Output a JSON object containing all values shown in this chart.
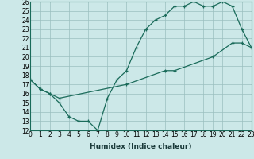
{
  "xlabel": "Humidex (Indice chaleur)",
  "bg_color": "#cce8e8",
  "line_color": "#1a6b5a",
  "x_line1": [
    0,
    1,
    2,
    3,
    4,
    5,
    6,
    7,
    8,
    9,
    10,
    11,
    12,
    13,
    14,
    15,
    16,
    17,
    18,
    19,
    20,
    21,
    22,
    23
  ],
  "y_line1": [
    17.5,
    16.5,
    16.0,
    15.0,
    13.5,
    13.0,
    13.0,
    12.0,
    15.5,
    17.5,
    18.5,
    21.0,
    23.0,
    24.0,
    24.5,
    25.5,
    25.5,
    26.0,
    25.5,
    25.5,
    26.0,
    25.5,
    23.0,
    21.0
  ],
  "x_line2": [
    0,
    1,
    2,
    3,
    10,
    14,
    15,
    19,
    21,
    22,
    23
  ],
  "y_line2": [
    17.5,
    16.5,
    16.0,
    15.5,
    17.0,
    18.5,
    18.5,
    20.0,
    21.5,
    21.5,
    21.0
  ],
  "xlim": [
    0,
    23
  ],
  "ylim": [
    12,
    26
  ],
  "yticks": [
    12,
    13,
    14,
    15,
    16,
    17,
    18,
    19,
    20,
    21,
    22,
    23,
    24,
    25,
    26
  ],
  "xticks": [
    0,
    1,
    2,
    3,
    4,
    5,
    6,
    7,
    8,
    9,
    10,
    11,
    12,
    13,
    14,
    15,
    16,
    17,
    18,
    19,
    20,
    21,
    22,
    23
  ],
  "xlabel_fontsize": 6.5,
  "tick_fontsize": 5.5,
  "grid_color": "#9bbfbf"
}
